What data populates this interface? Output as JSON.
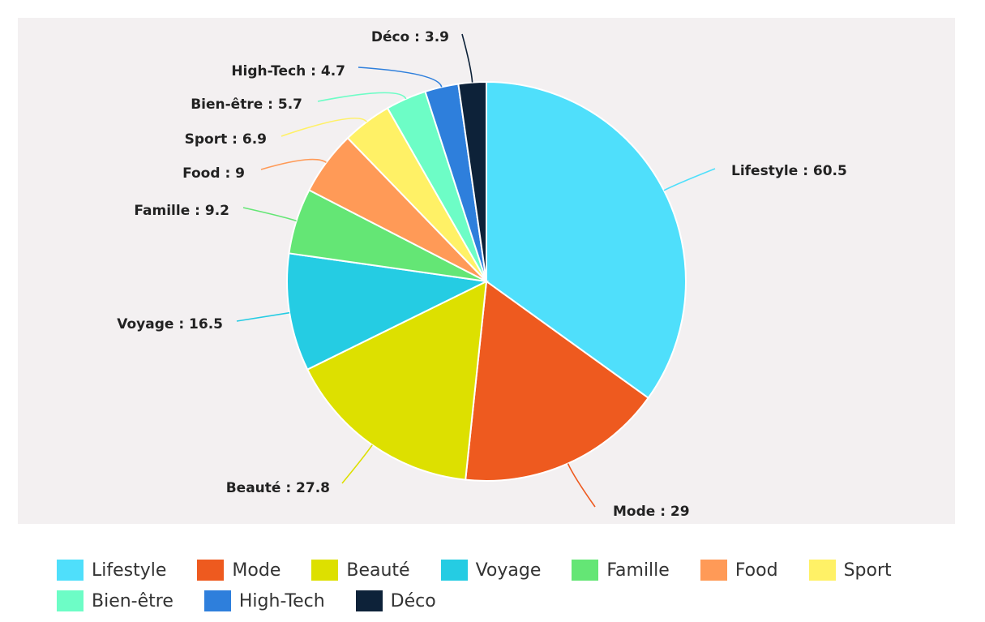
{
  "chart_data": {
    "type": "pie",
    "categories": [
      "Lifestyle",
      "Mode",
      "Beauté",
      "Voyage",
      "Famille",
      "Food",
      "Sport",
      "Bien-être",
      "High-Tech",
      "Déco"
    ],
    "values": [
      60.5,
      29,
      27.8,
      16.5,
      9.2,
      9,
      6.9,
      5.7,
      4.7,
      3.9
    ],
    "data_labels": [
      "Lifestyle : 60.5",
      "Mode : 29",
      "Beauté : 27.8",
      "Voyage : 16.5",
      "Famille : 9.2",
      "Food : 9",
      "Sport : 6.9",
      "Bien-être : 5.7",
      "High-Tech : 4.7",
      "Déco : 3.9"
    ],
    "colors": [
      "#4fdffb",
      "#ee5a1f",
      "#dde000",
      "#25cce3",
      "#64e675",
      "#ff9a57",
      "#fff166",
      "#6dfdc6",
      "#2e7fdc",
      "#0d2239"
    ],
    "legend_placement": "bottom",
    "start_angle_deg": 0,
    "direction": "clockwise"
  },
  "legend": {
    "rows": [
      [
        0,
        1,
        2,
        3,
        4,
        5,
        6
      ],
      [
        7,
        8,
        9
      ]
    ]
  }
}
